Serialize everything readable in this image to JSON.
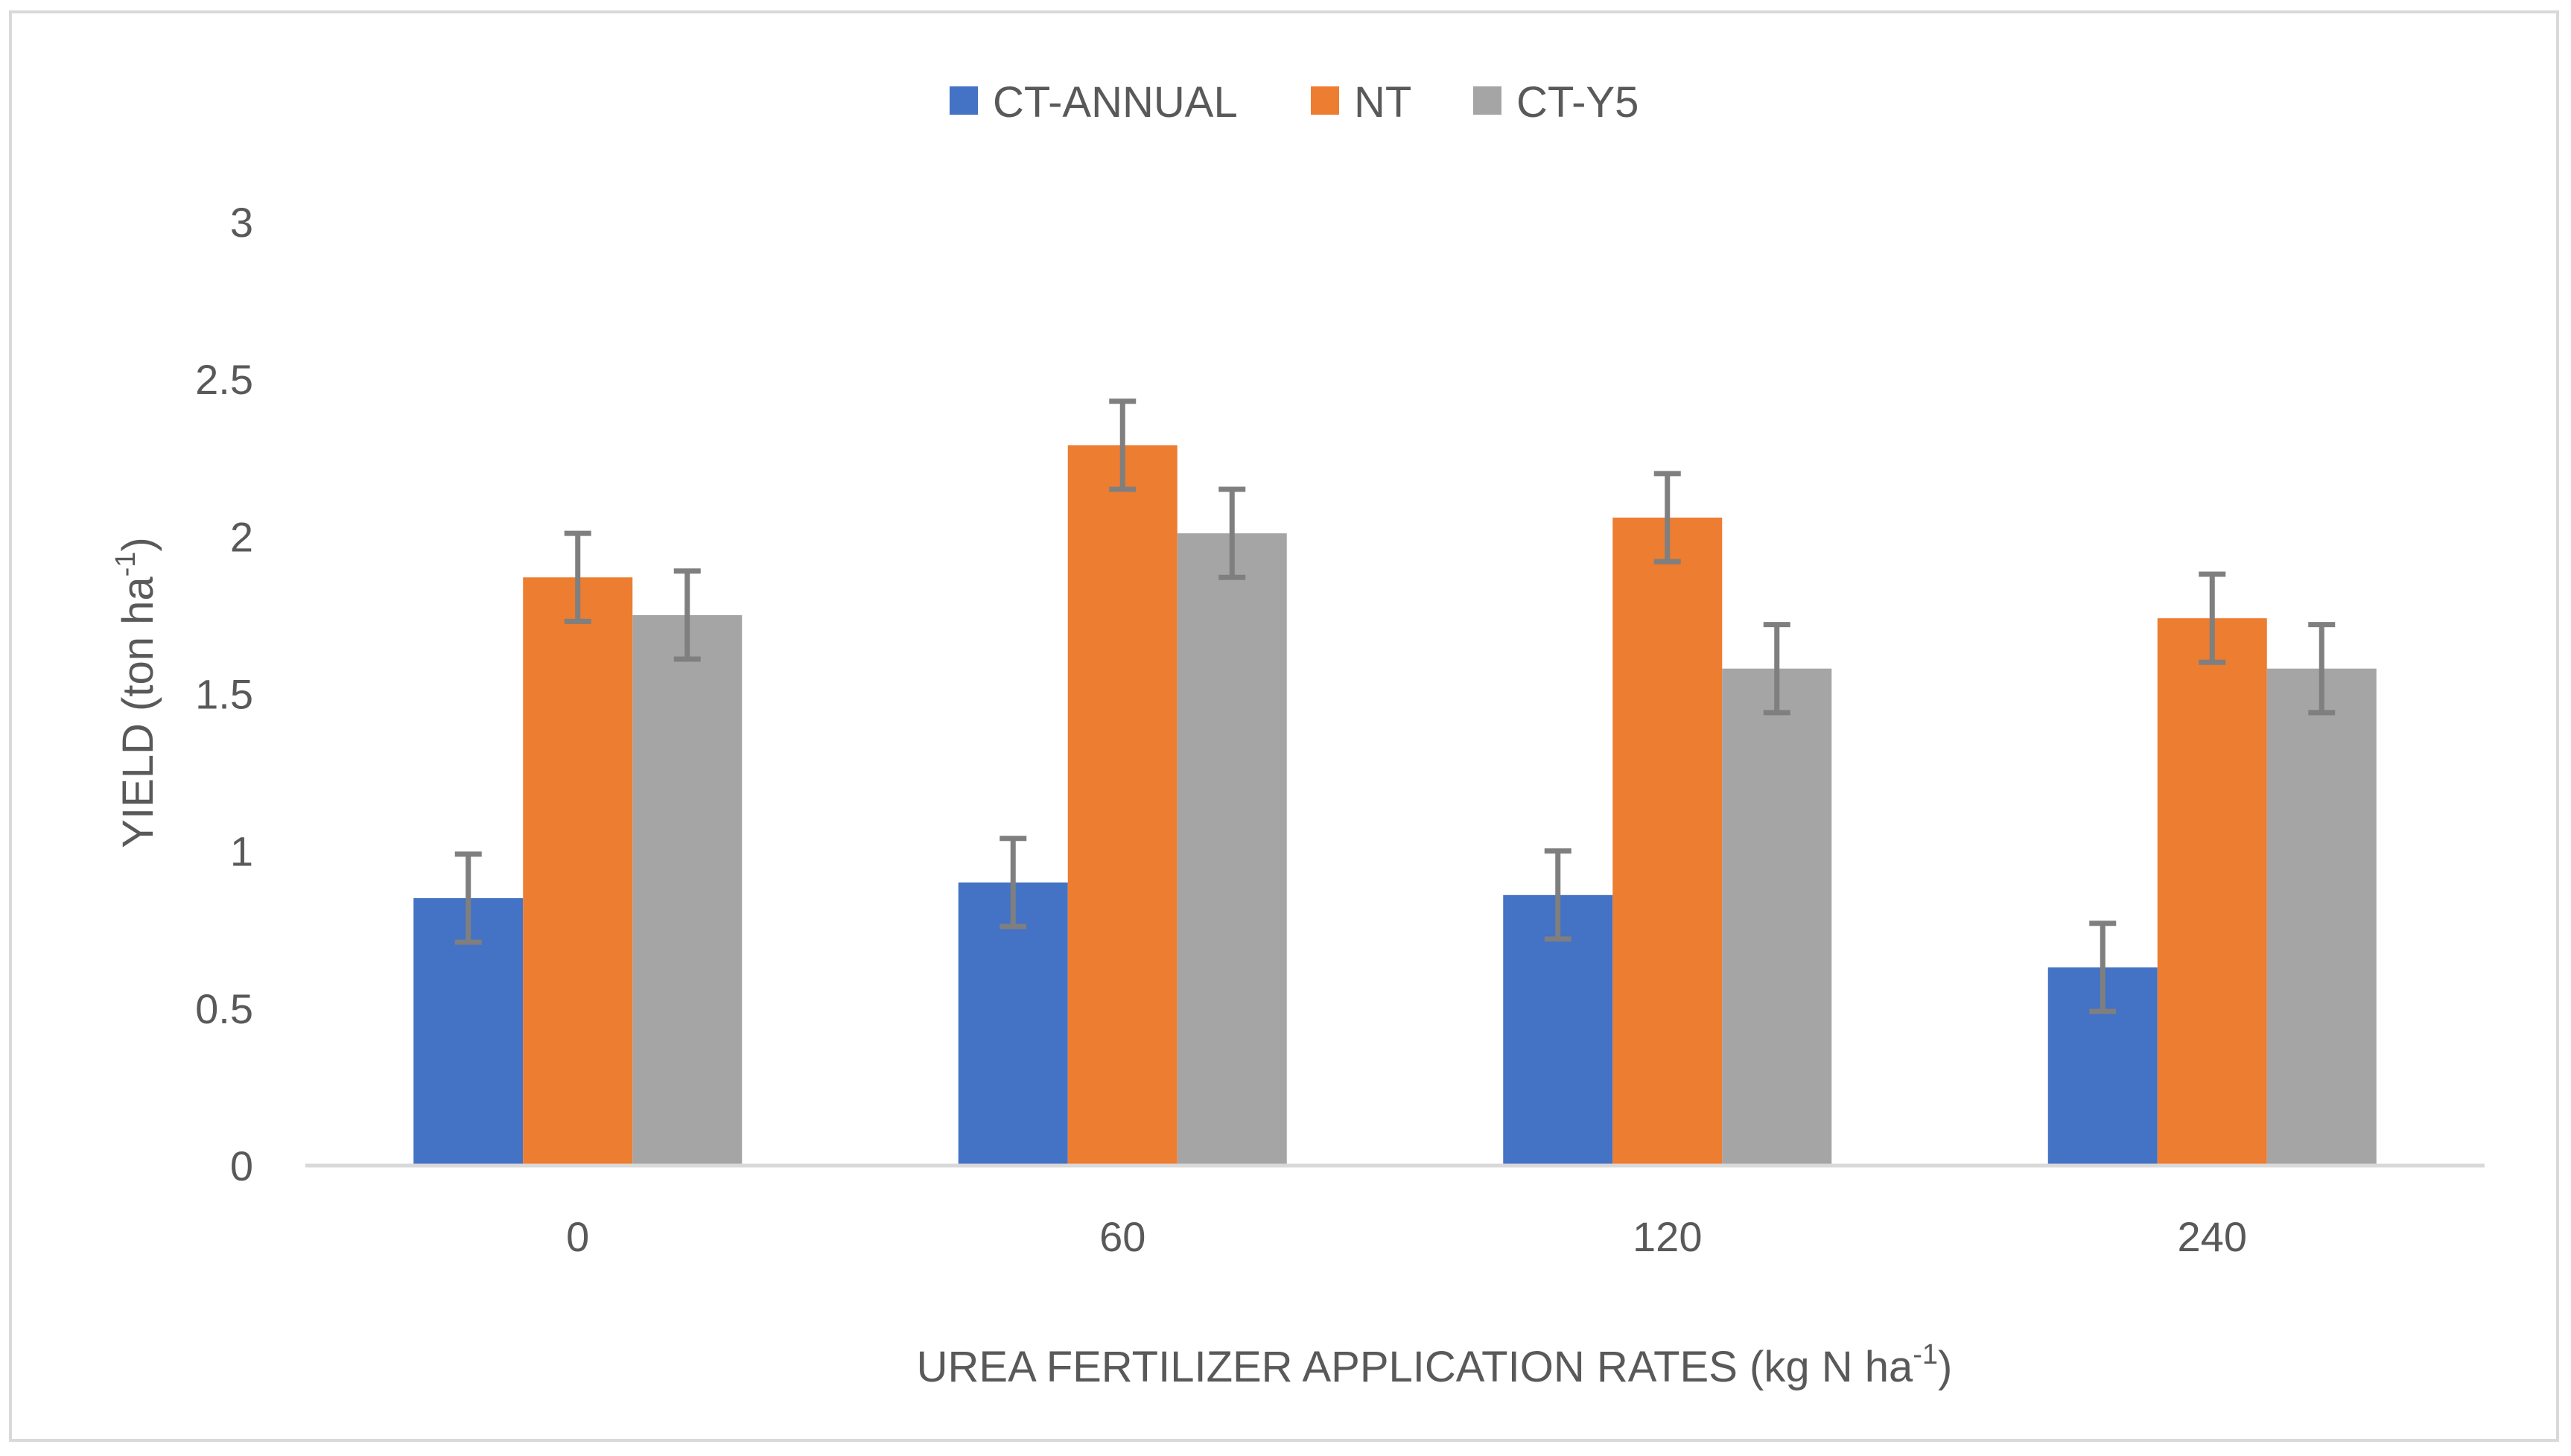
{
  "chart_data": {
    "type": "bar",
    "categories": [
      "0",
      "60",
      "120",
      "240"
    ],
    "series": [
      {
        "name": "CT-ANNUAL",
        "color": "#4472c4",
        "values": [
          0.85,
          0.9,
          0.86,
          0.63
        ],
        "errors": [
          0.14,
          0.14,
          0.14,
          0.14
        ]
      },
      {
        "name": "NT",
        "color": "#ed7d31",
        "values": [
          1.87,
          2.29,
          2.06,
          1.74
        ],
        "errors": [
          0.14,
          0.14,
          0.14,
          0.14
        ]
      },
      {
        "name": "CT-Y5",
        "color": "#a5a5a5",
        "values": [
          1.75,
          2.01,
          1.58,
          1.58
        ],
        "errors": [
          0.14,
          0.14,
          0.14,
          0.14
        ]
      }
    ],
    "xlabel_main": "UREA FERTILIZER APPLICATION RATES (kg N ha",
    "xlabel_sup": "-1",
    "xlabel_end": ")",
    "ylabel_main": "YIELD (ton ha",
    "ylabel_sup": "-1",
    "ylabel_end": ")",
    "ylim": [
      0,
      3
    ],
    "yticks": [
      "0",
      "0.5",
      "1",
      "1.5",
      "2",
      "2.5",
      "3"
    ],
    "legend_position": "top-center",
    "grid": false,
    "error_color": "#7f7f7f",
    "axis_color": "#d9d9d9"
  }
}
